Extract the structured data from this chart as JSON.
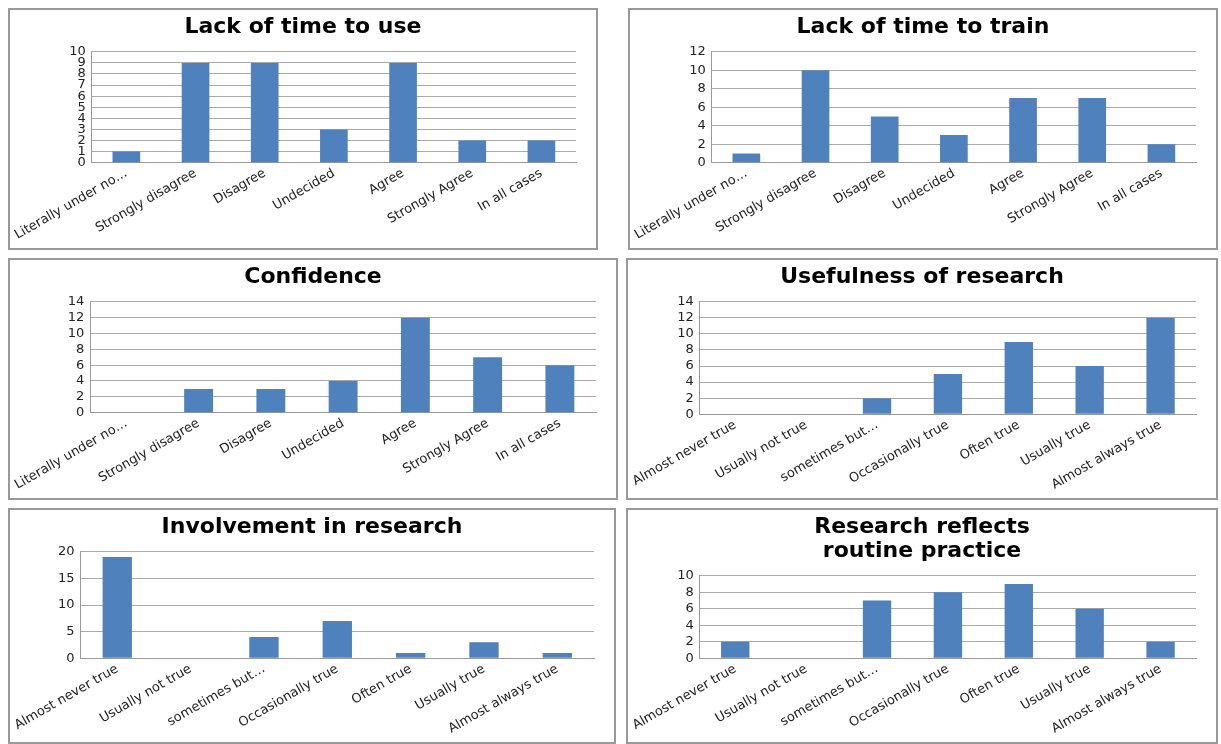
{
  "chart_data": [
    {
      "type": "bar",
      "title": "Lack of time to use",
      "categories": [
        "Literally under no…",
        "Strongly disagree",
        "Disagree",
        "Undecided",
        "Agree",
        "Strongly Agree",
        "In all cases"
      ],
      "values": [
        1,
        9,
        9,
        3,
        9,
        2,
        2
      ],
      "color": "#4f81bd",
      "ylim": [
        0,
        10
      ],
      "yticks": [
        0,
        1,
        2,
        3,
        4,
        5,
        6,
        7,
        8,
        9,
        10
      ],
      "grid": "y"
    },
    {
      "type": "bar",
      "title": "Lack of time to train",
      "categories": [
        "Literally under no…",
        "Strongly disagree",
        "Disagree",
        "Undecided",
        "Agree",
        "Strongly Agree",
        "In all cases"
      ],
      "values": [
        1,
        10,
        5,
        3,
        7,
        7,
        2
      ],
      "color": "#4f81bd",
      "ylim": [
        0,
        12
      ],
      "yticks": [
        0,
        2,
        4,
        6,
        8,
        10,
        12
      ],
      "grid": "y"
    },
    {
      "type": "bar",
      "title": "Confidence",
      "categories": [
        "Literally under no…",
        "Strongly disagree",
        "Disagree",
        "Undecided",
        "Agree",
        "Strongly Agree",
        "In all cases"
      ],
      "values": [
        0,
        3,
        3,
        4,
        12,
        7,
        6
      ],
      "color": "#4f81bd",
      "ylim": [
        0,
        14
      ],
      "yticks": [
        0,
        2,
        4,
        6,
        8,
        10,
        12,
        14
      ],
      "grid": "y"
    },
    {
      "type": "bar",
      "title": "Usefulness of research",
      "categories": [
        "Almost never true",
        "Usually not true",
        "sometimes but…",
        "Occasionally true",
        "Often true",
        "Usually true",
        "Almost always true"
      ],
      "values": [
        0,
        0,
        2,
        5,
        9,
        6,
        12
      ],
      "color": "#4f81bd",
      "ylim": [
        0,
        14
      ],
      "yticks": [
        0,
        2,
        4,
        6,
        8,
        10,
        12,
        14
      ],
      "grid": "y"
    },
    {
      "type": "bar",
      "title": "Involvement in research",
      "categories": [
        "Almost never true",
        "Usually not true",
        "sometimes but…",
        "Occasionally true",
        "Often true",
        "Usually true",
        "Almost always true"
      ],
      "values": [
        19,
        0,
        4,
        7,
        1,
        3,
        1
      ],
      "color": "#4f81bd",
      "ylim": [
        0,
        20
      ],
      "yticks": [
        0,
        5,
        10,
        15,
        20
      ],
      "grid": "y"
    },
    {
      "type": "bar",
      "title": "Research reflects routine practice",
      "categories": [
        "Almost never true",
        "Usually not true",
        "sometimes but…",
        "Occasionally true",
        "Often true",
        "Usually true",
        "Almost always true"
      ],
      "values": [
        2,
        0,
        7,
        8,
        9,
        6,
        2
      ],
      "color": "#4f81bd",
      "ylim": [
        0,
        10
      ],
      "yticks": [
        0,
        2,
        4,
        6,
        8,
        10
      ],
      "grid": "y"
    }
  ]
}
